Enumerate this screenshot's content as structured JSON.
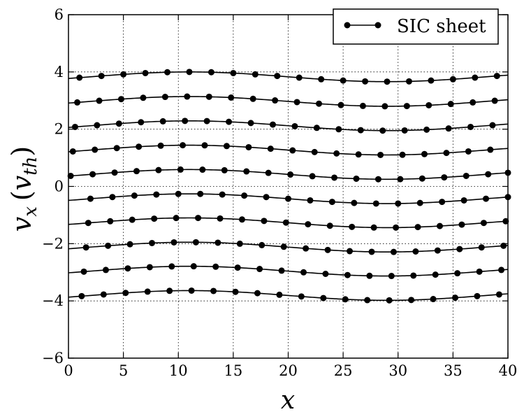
{
  "chart_data": {
    "type": "line",
    "title": "",
    "xlabel": "x",
    "ylabel": "v_x (v_th)",
    "xlim": [
      0,
      40
    ],
    "ylim": [
      -6,
      6
    ],
    "xticks": [
      0,
      5,
      10,
      15,
      20,
      25,
      30,
      35,
      40
    ],
    "yticks": [
      -6,
      -4,
      -2,
      0,
      2,
      4,
      6
    ],
    "xtick_labels": [
      "0",
      "5",
      "10",
      "15",
      "20",
      "25",
      "30",
      "35",
      "40"
    ],
    "ytick_labels": [
      "−6",
      "−4",
      "−2",
      "0",
      "2",
      "4",
      "6"
    ],
    "grid": true,
    "legend": {
      "position": "top-right",
      "entries": [
        "SIC sheet"
      ]
    },
    "line_color": "#000000",
    "marker_color": "#000000",
    "curve": {
      "x_peak": 11,
      "x_trough": 29
    },
    "series": [
      {
        "name": "SIC sheet",
        "baseline": 3.83,
        "amplitude": 0.17,
        "x": [
          1,
          3,
          5,
          7,
          9,
          11,
          13,
          15,
          17,
          19,
          21,
          23,
          25,
          27,
          29,
          31,
          33,
          35,
          37,
          39
        ]
      },
      {
        "name": "SIC sheet",
        "baseline": 2.97,
        "amplitude": 0.17,
        "x": [
          0.8,
          2.8,
          4.8,
          6.8,
          8.8,
          10.8,
          12.8,
          14.8,
          16.8,
          18.8,
          20.8,
          22.8,
          24.8,
          26.8,
          28.8,
          30.8,
          32.8,
          34.8,
          36.8,
          38.8
        ]
      },
      {
        "name": "SIC sheet",
        "baseline": 2.12,
        "amplitude": 0.17,
        "x": [
          0.6,
          2.6,
          4.6,
          6.6,
          8.6,
          10.6,
          12.6,
          14.6,
          16.6,
          18.6,
          20.6,
          22.6,
          24.6,
          26.6,
          28.6,
          30.6,
          32.6,
          34.6,
          36.6,
          38.6
        ]
      },
      {
        "name": "SIC sheet",
        "baseline": 1.27,
        "amplitude": 0.17,
        "x": [
          0.4,
          2.4,
          4.4,
          6.4,
          8.4,
          10.4,
          12.4,
          14.4,
          16.4,
          18.4,
          20.4,
          22.4,
          24.4,
          26.4,
          28.4,
          30.4,
          32.4,
          34.4,
          36.4,
          38.4
        ]
      },
      {
        "name": "SIC sheet",
        "baseline": 0.42,
        "amplitude": 0.17,
        "x": [
          0.2,
          2.2,
          4.2,
          6.2,
          8.2,
          10.2,
          12.2,
          14.2,
          16.2,
          18.2,
          20.2,
          22.2,
          24.2,
          26.2,
          28.2,
          30.2,
          32.2,
          34.2,
          36.2,
          38.2,
          40
        ]
      },
      {
        "name": "SIC sheet",
        "baseline": -0.43,
        "amplitude": 0.17,
        "x": [
          2,
          4,
          6,
          8,
          10,
          12,
          14,
          16,
          18,
          20,
          22,
          24,
          26,
          28,
          30,
          32,
          34,
          36,
          38,
          40
        ]
      },
      {
        "name": "SIC sheet",
        "baseline": -1.27,
        "amplitude": 0.17,
        "x": [
          1.8,
          3.8,
          5.8,
          7.8,
          9.8,
          11.8,
          13.8,
          15.8,
          17.8,
          19.8,
          21.8,
          23.8,
          25.8,
          27.8,
          29.8,
          31.8,
          33.8,
          35.8,
          37.8,
          39.8
        ]
      },
      {
        "name": "SIC sheet",
        "baseline": -2.12,
        "amplitude": 0.17,
        "x": [
          1.6,
          3.6,
          5.6,
          7.6,
          9.6,
          11.6,
          13.6,
          15.6,
          17.6,
          19.6,
          21.6,
          23.6,
          25.6,
          27.6,
          29.6,
          31.6,
          33.6,
          35.6,
          37.6,
          39.6
        ]
      },
      {
        "name": "SIC sheet",
        "baseline": -2.96,
        "amplitude": 0.17,
        "x": [
          1.4,
          3.4,
          5.4,
          7.4,
          9.4,
          11.4,
          13.4,
          15.4,
          17.4,
          19.4,
          21.4,
          23.4,
          25.4,
          27.4,
          29.4,
          31.4,
          33.4,
          35.4,
          37.4,
          39.4
        ]
      },
      {
        "name": "SIC sheet",
        "baseline": -3.81,
        "amplitude": 0.17,
        "x": [
          1.2,
          3.2,
          5.2,
          7.2,
          9.2,
          11.2,
          13.2,
          15.2,
          17.2,
          19.2,
          21.2,
          23.2,
          25.2,
          27.2,
          29.2,
          31.2,
          33.2,
          35.2,
          37.2,
          39.2
        ]
      }
    ]
  }
}
